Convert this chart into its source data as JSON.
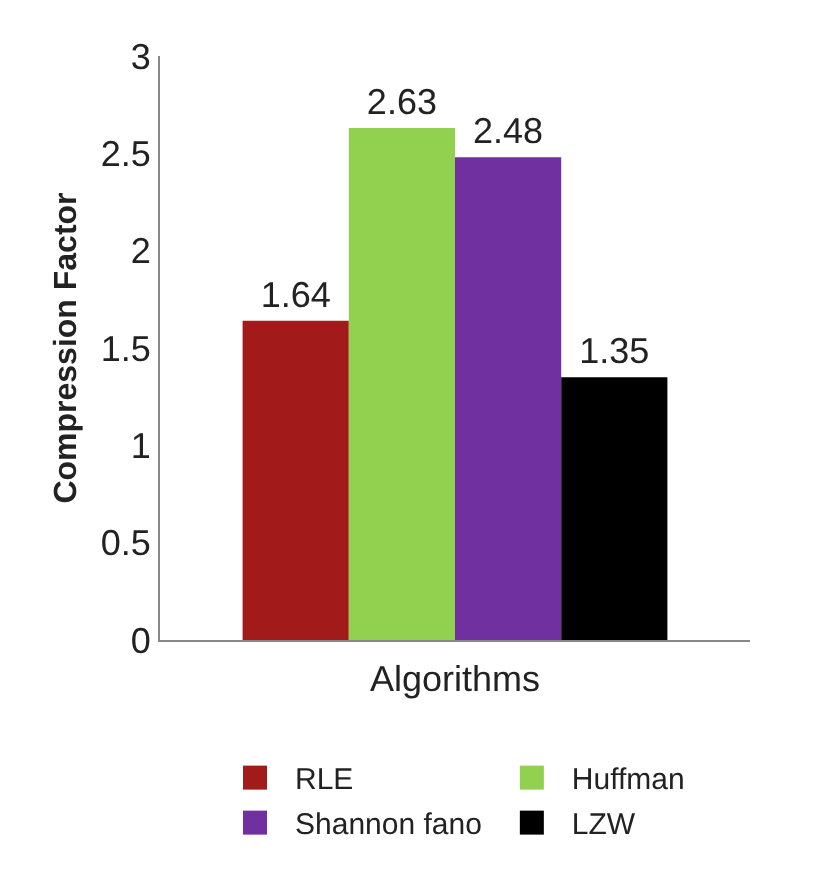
{
  "chart_data": {
    "type": "bar",
    "xlabel": "Algorithms",
    "ylabel": "Compression Factor",
    "categories": [
      null
    ],
    "series": [
      {
        "name": "RLE",
        "color": "#a31a1a",
        "values": [
          1.64
        ]
      },
      {
        "name": "Huffman",
        "color": "#92d050",
        "values": [
          2.63
        ]
      },
      {
        "name": "Shannon fano",
        "color": "#7030a0",
        "values": [
          2.48
        ]
      },
      {
        "name": "LZW",
        "color": "#000000",
        "values": [
          1.35
        ]
      }
    ],
    "ylim": [
      0,
      3
    ],
    "yticks": [
      0,
      0.5,
      1,
      1.5,
      2,
      2.5,
      3
    ],
    "grid": false,
    "legend": "bottom",
    "data_labels": true
  }
}
